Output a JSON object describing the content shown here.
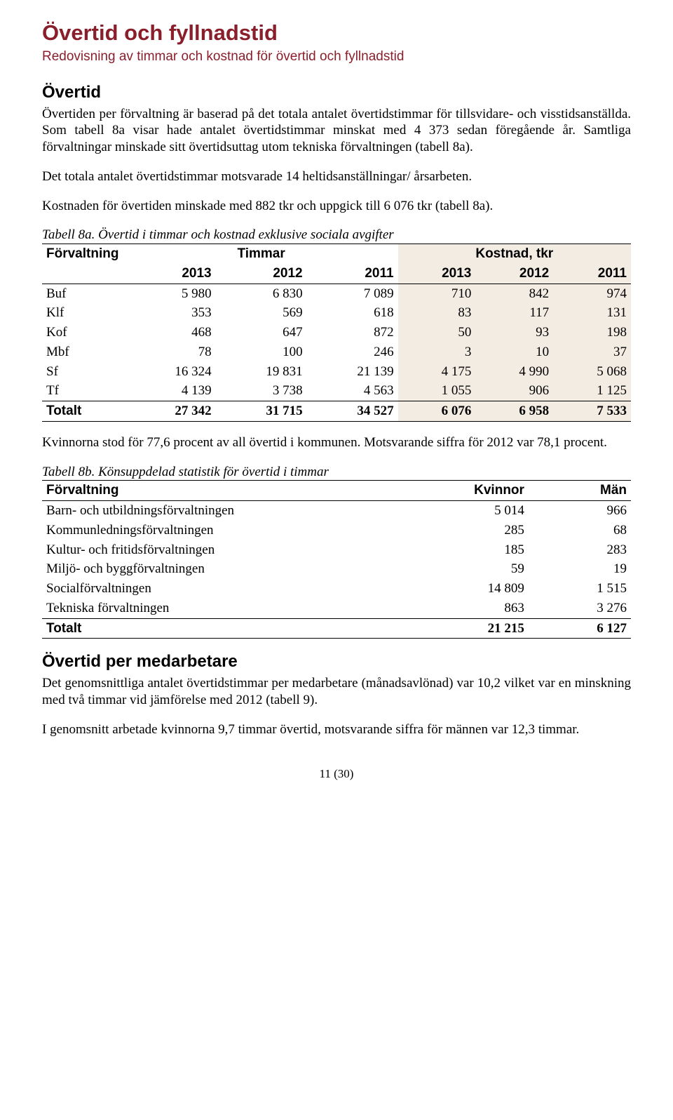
{
  "page_title": "Övertid och fyllnadstid",
  "subtitle": "Redovisning av timmar och kostnad för övertid och fyllnadstid",
  "section1": {
    "heading": "Övertid",
    "p1": "Övertiden per förvaltning är baserad på det totala antalet övertidstimmar för tillsvidare- och visstidsanställda. Som tabell 8a visar hade antalet övertidstimmar minskat med 4 373 sedan föregående år. Samtliga förvaltningar minskade sitt övertidsuttag utom tekniska förvaltningen (tabell 8a).",
    "p2": "Det totala antalet övertidstimmar motsvarade 14 heltidsanställningar/ årsarbeten.",
    "p3": "Kostnaden för övertiden minskade med 882 tkr och uppgick till 6 076 tkr (tabell 8a)."
  },
  "table8a": {
    "caption": "Tabell 8a. Övertid i timmar och kostnad exklusive sociala avgifter",
    "col_forvaltning": "Förvaltning",
    "col_timmar": "Timmar",
    "col_kostnad": "Kostnad, tkr",
    "years": [
      "2013",
      "2012",
      "2011",
      "2013",
      "2012",
      "2011"
    ],
    "highlight_color": "#f3ece3",
    "rows": [
      {
        "label": "Buf",
        "t": [
          "5 980",
          "6 830",
          "7 089"
        ],
        "k": [
          "710",
          "842",
          "974"
        ]
      },
      {
        "label": "Klf",
        "t": [
          "353",
          "569",
          "618"
        ],
        "k": [
          "83",
          "117",
          "131"
        ]
      },
      {
        "label": "Kof",
        "t": [
          "468",
          "647",
          "872"
        ],
        "k": [
          "50",
          "93",
          "198"
        ]
      },
      {
        "label": "Mbf",
        "t": [
          "78",
          "100",
          "246"
        ],
        "k": [
          "3",
          "10",
          "37"
        ]
      },
      {
        "label": "Sf",
        "t": [
          "16 324",
          "19 831",
          "21 139"
        ],
        "k": [
          "4 175",
          "4 990",
          "5 068"
        ]
      },
      {
        "label": "Tf",
        "t": [
          "4 139",
          "3 738",
          "4 563"
        ],
        "k": [
          "1 055",
          "906",
          "1 125"
        ]
      }
    ],
    "total": {
      "label": "Totalt",
      "t": [
        "27 342",
        "31 715",
        "34 527"
      ],
      "k": [
        "6 076",
        "6 958",
        "7 533"
      ]
    }
  },
  "mid_p": "Kvinnorna stod för 77,6 procent av all övertid i kommunen. Motsvarande siffra för 2012 var 78,1 procent.",
  "table8b": {
    "caption": "Tabell 8b. Könsuppdelad statistik för övertid i timmar",
    "col_forvaltning": "Förvaltning",
    "col_kvinnor": "Kvinnor",
    "col_man": "Män",
    "rows": [
      {
        "label": "Barn- och utbildningsförvaltningen",
        "kv": "5 014",
        "man": "966"
      },
      {
        "label": "Kommunledningsförvaltningen",
        "kv": "285",
        "man": "68"
      },
      {
        "label": "Kultur- och fritidsförvaltningen",
        "kv": "185",
        "man": "283"
      },
      {
        "label": "Miljö- och byggförvaltningen",
        "kv": "59",
        "man": "19"
      },
      {
        "label": "Socialförvaltningen",
        "kv": "14 809",
        "man": "1 515"
      },
      {
        "label": "Tekniska förvaltningen",
        "kv": "863",
        "man": "3 276"
      }
    ],
    "total": {
      "label": "Totalt",
      "kv": "21 215",
      "man": "6 127"
    }
  },
  "section2": {
    "heading": "Övertid per medarbetare",
    "p1": "Det genomsnittliga antalet övertidstimmar per medarbetare (månadsavlönad) var 10,2 vilket var en minskning med två timmar vid jämförelse med 2012 (tabell 9).",
    "p2": "I genomsnitt arbetade kvinnorna 9,7 timmar övertid, motsvarande siffra för männen var 12,3 timmar."
  },
  "footer": "11 (30)"
}
